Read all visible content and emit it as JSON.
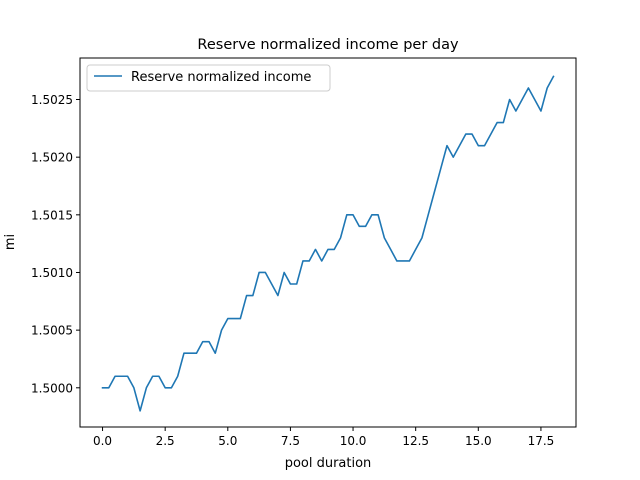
{
  "chart_data": {
    "type": "line",
    "title": "Reserve normalized income per day",
    "xlabel": "pool duration",
    "ylabel": "mi",
    "xlim": [
      -0.9,
      18.9
    ],
    "ylim": [
      1.49966,
      1.50286
    ],
    "xticks": [
      0.0,
      2.5,
      5.0,
      7.5,
      10.0,
      12.5,
      15.0,
      17.5
    ],
    "xtick_labels": [
      "0.0",
      "2.5",
      "5.0",
      "7.5",
      "10.0",
      "12.5",
      "15.0",
      "17.5"
    ],
    "yticks": [
      1.5,
      1.5005,
      1.501,
      1.5015,
      1.502,
      1.5025
    ],
    "ytick_labels": [
      "1.5000",
      "1.5005",
      "1.5010",
      "1.5015",
      "1.5020",
      "1.5025"
    ],
    "grid": false,
    "legend": "top-left",
    "series": [
      {
        "name": "Reserve normalized income",
        "color": "#1f77b4",
        "x": [
          0,
          0.25,
          0.5,
          0.75,
          1.0,
          1.25,
          1.5,
          1.75,
          2.0,
          2.25,
          2.5,
          2.75,
          3.0,
          3.25,
          3.5,
          3.75,
          4.0,
          4.25,
          4.5,
          4.75,
          5.0,
          5.25,
          5.5,
          5.75,
          6.0,
          6.25,
          6.5,
          6.75,
          7.0,
          7.25,
          7.5,
          7.75,
          8.0,
          8.25,
          8.5,
          8.75,
          9.0,
          9.25,
          9.5,
          9.75,
          10.0,
          10.25,
          10.5,
          10.75,
          11.0,
          11.25,
          11.5,
          11.75,
          12.0,
          12.25,
          12.5,
          12.75,
          13.0,
          13.25,
          13.5,
          13.75,
          14.0,
          14.25,
          14.5,
          14.75,
          15.0,
          15.25,
          15.5,
          15.75,
          16.0,
          16.25,
          16.5,
          16.75,
          17.0,
          17.25,
          17.5,
          17.75,
          18.0
        ],
        "y": [
          1.5,
          1.5,
          1.5001,
          1.5001,
          1.5001,
          1.5,
          1.4998,
          1.5,
          1.5001,
          1.5001,
          1.5,
          1.5,
          1.5001,
          1.5003,
          1.5003,
          1.5003,
          1.5004,
          1.5004,
          1.5003,
          1.5005,
          1.5006,
          1.5006,
          1.5006,
          1.5008,
          1.5008,
          1.501,
          1.501,
          1.5009,
          1.5008,
          1.501,
          1.5009,
          1.5009,
          1.5011,
          1.5011,
          1.5012,
          1.5011,
          1.5012,
          1.5012,
          1.5013,
          1.5015,
          1.5015,
          1.5014,
          1.5014,
          1.5015,
          1.5015,
          1.5013,
          1.5012,
          1.5011,
          1.5011,
          1.5011,
          1.5012,
          1.5013,
          1.5015,
          1.5017,
          1.5019,
          1.5021,
          1.502,
          1.5021,
          1.5022,
          1.5022,
          1.5021,
          1.5021,
          1.5022,
          1.5023,
          1.5023,
          1.5025,
          1.5024,
          1.5025,
          1.5026,
          1.5025,
          1.5024,
          1.5026,
          1.5027
        ]
      }
    ]
  }
}
